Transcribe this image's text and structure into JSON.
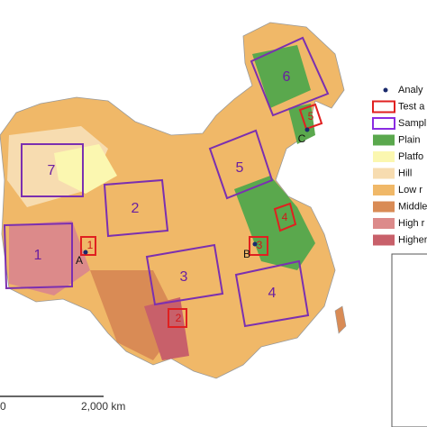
{
  "legend": {
    "items": [
      {
        "label": "Analy",
        "color": "#1a2a6c"
      },
      {
        "label": "Test a",
        "color": "#e02020"
      },
      {
        "label": "Sampl",
        "color": "#8a2be2"
      },
      {
        "label": "Plain",
        "color": "#5aa84d"
      },
      {
        "label": "Platfo",
        "color": "#fbf7b0"
      },
      {
        "label": "Hill",
        "color": "#f7dcb0"
      },
      {
        "label": "Low r",
        "color": "#f0b868"
      },
      {
        "label": "Middle",
        "color": "#d98b55"
      },
      {
        "label": "High r",
        "color": "#dc8a8a"
      },
      {
        "label": "Higher",
        "color": "#c8606a"
      }
    ]
  },
  "sample_areas": [
    "1",
    "2",
    "3",
    "4",
    "5",
    "6",
    "7"
  ],
  "test_areas": [
    "1",
    "2",
    "3",
    "4",
    "5"
  ],
  "points": [
    "A",
    "B",
    "C"
  ],
  "scale_bar": {
    "start": "0",
    "end": "2,000 km"
  }
}
